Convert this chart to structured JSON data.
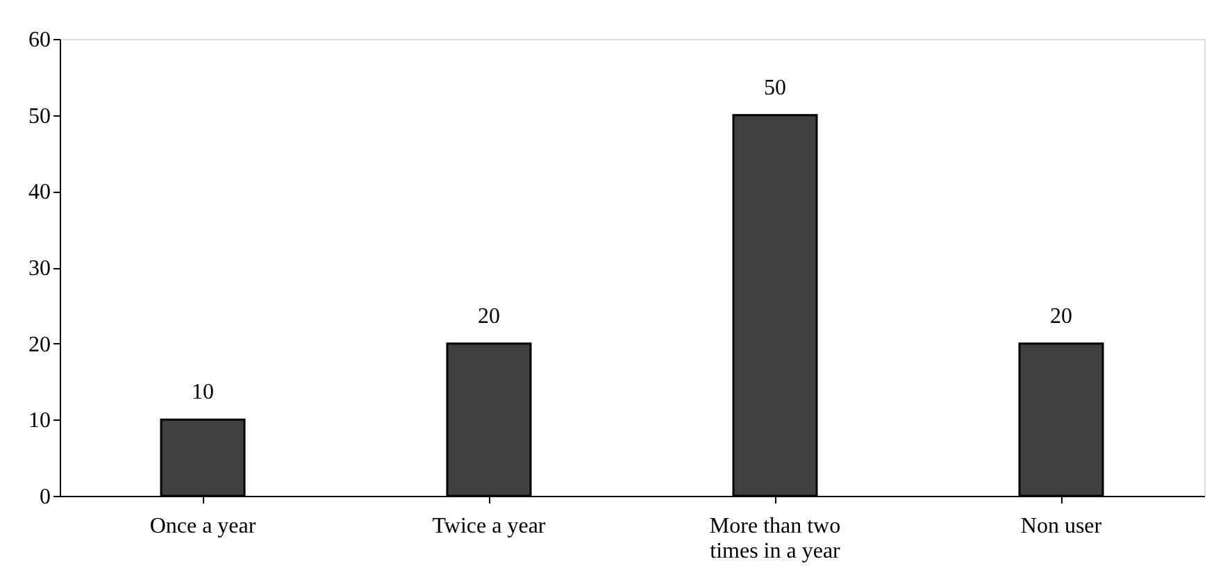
{
  "chart_data": {
    "type": "bar",
    "categories": [
      "Once a year",
      "Twice a year",
      "More than two times in a year",
      "Non user"
    ],
    "values": [
      10,
      20,
      50,
      20
    ],
    "color": "#404040",
    "ylim": [
      0,
      60
    ],
    "yticks": [
      0,
      10,
      20,
      30,
      40,
      50,
      60
    ],
    "grid": false,
    "data_labels": true
  }
}
